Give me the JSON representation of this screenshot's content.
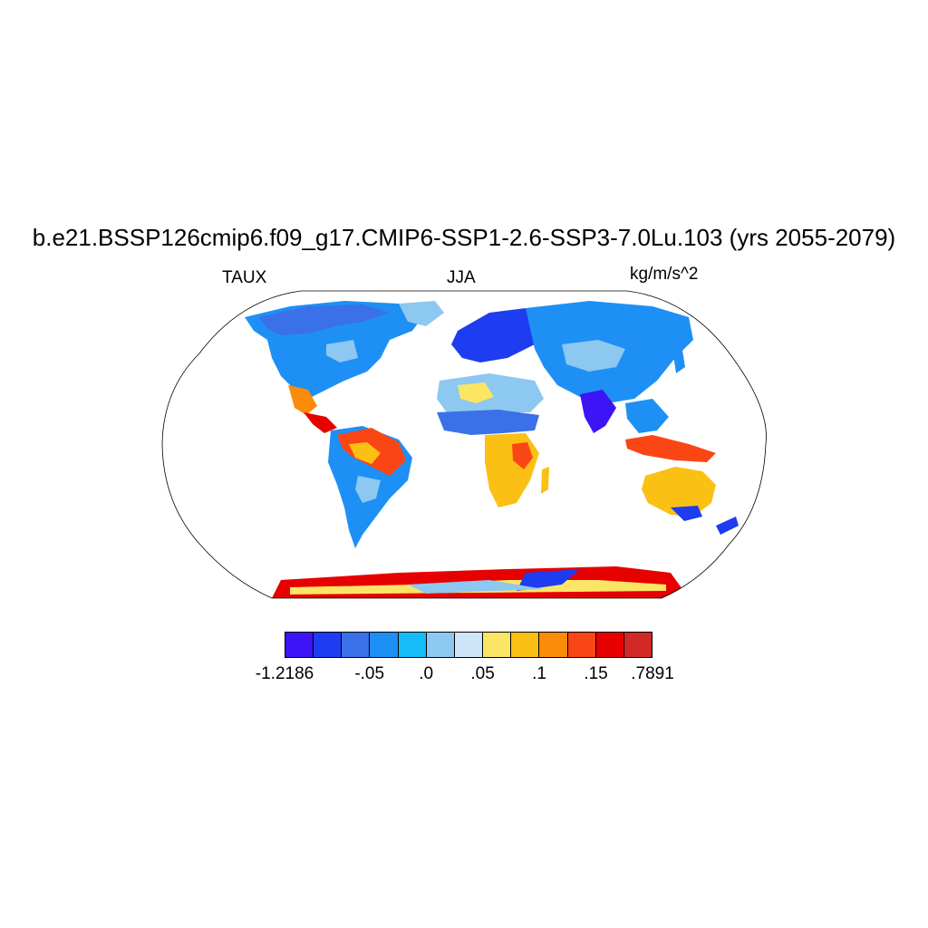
{
  "title": "b.e21.BSSP126cmip6.f09_g17.CMIP6-SSP1-2.6-SSP3-7.0Lu.103 (yrs 2055-2079)",
  "variable": "TAUX",
  "season": "JJA",
  "units": "kg/m/s^2",
  "colorbar": {
    "colors": [
      "#3c14f5",
      "#1e3cf0",
      "#3a70e8",
      "#1e90f5",
      "#14bcf8",
      "#8cc8f0",
      "#cce6f8",
      "#fae664",
      "#fac014",
      "#fa8c0a",
      "#fa4614",
      "#e60000",
      "#d22828"
    ],
    "labels": [
      {
        "text": "-1.2186",
        "boundary": 0
      },
      {
        "text": "-.05",
        "boundary": 3
      },
      {
        "text": ".0",
        "boundary": 5
      },
      {
        "text": ".05",
        "boundary": 7
      },
      {
        "text": ".1",
        "boundary": 9
      },
      {
        "text": ".15",
        "boundary": 11
      },
      {
        "text": ".7891",
        "boundary": 13
      }
    ]
  }
}
